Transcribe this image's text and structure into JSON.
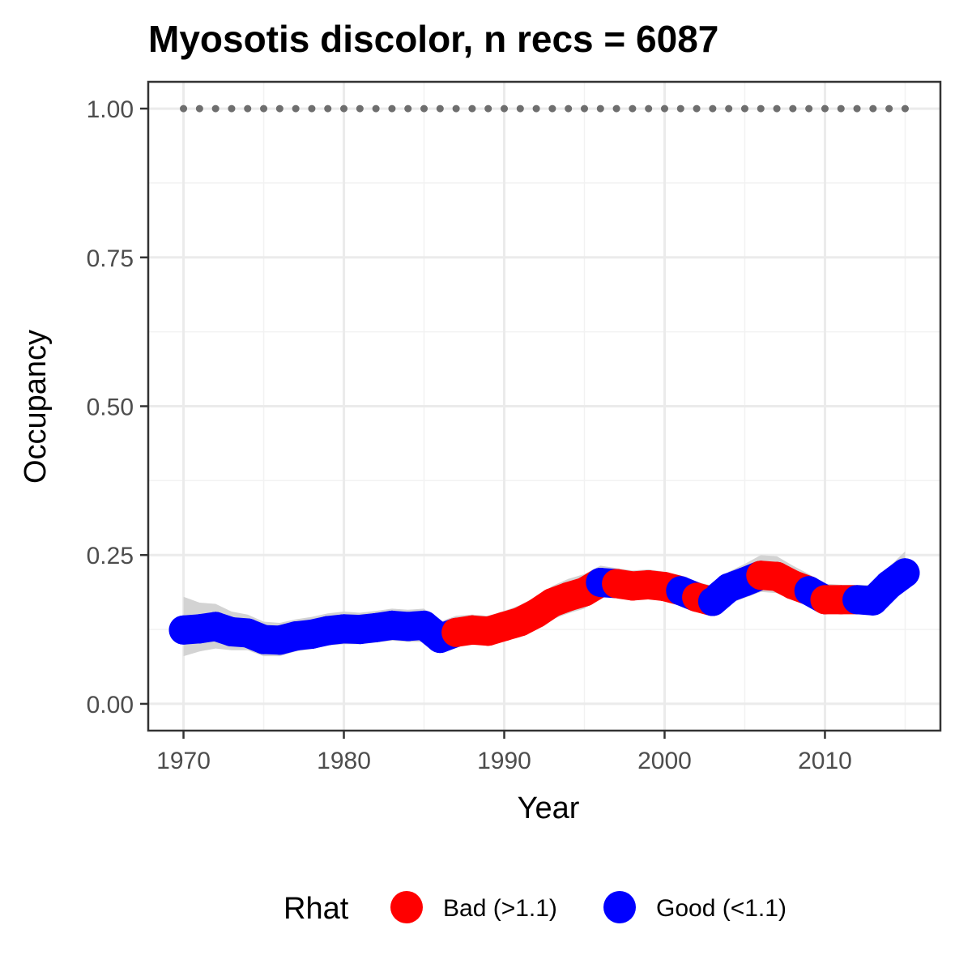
{
  "chart_data": {
    "type": "line",
    "title": "Myosotis discolor, n recs = 6087",
    "xlabel": "Year",
    "ylabel": "Occupancy",
    "xlim": [
      1967.8,
      2017.2
    ],
    "ylim": [
      -0.045,
      1.045
    ],
    "x_ticks": [
      1970,
      1980,
      1990,
      2000,
      2010
    ],
    "x_tick_labels": [
      "1970",
      "1980",
      "1990",
      "2000",
      "2010"
    ],
    "y_ticks": [
      0,
      0.25,
      0.5,
      0.75,
      1.0
    ],
    "y_tick_labels": [
      "0.00",
      "0.25",
      "0.50",
      "0.75",
      "1.00"
    ],
    "grid": true,
    "legend": {
      "title": "Rhat",
      "position": "bottom",
      "entries": [
        {
          "label": "Bad (>1.1)",
          "color": "#ff0000"
        },
        {
          "label": "Good (<1.1)",
          "color": "#0000ff"
        }
      ]
    },
    "colors": {
      "Bad": "#ff0000",
      "Good": "#0000ff",
      "band": "#d3d3d3",
      "reference": "#6e6e6e"
    },
    "reference_line": {
      "y": 1.0,
      "style": "dotted"
    },
    "x": [
      1970,
      1971,
      1972,
      1973,
      1974,
      1975,
      1976,
      1977,
      1978,
      1979,
      1980,
      1981,
      1982,
      1983,
      1984,
      1985,
      1986,
      1987,
      1988,
      1989,
      1990,
      1991,
      1992,
      1993,
      1994,
      1995,
      1996,
      1997,
      1998,
      1999,
      2000,
      2001,
      2002,
      2003,
      2004,
      2005,
      2006,
      2007,
      2008,
      2009,
      2010,
      2011,
      2012,
      2013,
      2014,
      2015
    ],
    "y": [
      0.124,
      0.126,
      0.13,
      0.121,
      0.119,
      0.108,
      0.107,
      0.114,
      0.117,
      0.123,
      0.126,
      0.125,
      0.128,
      0.132,
      0.13,
      0.132,
      0.11,
      0.12,
      0.124,
      0.122,
      0.13,
      0.138,
      0.152,
      0.17,
      0.18,
      0.188,
      0.204,
      0.202,
      0.198,
      0.2,
      0.197,
      0.19,
      0.179,
      0.172,
      0.195,
      0.205,
      0.216,
      0.214,
      0.2,
      0.19,
      0.175,
      0.175,
      0.175,
      0.173,
      0.2,
      0.22
    ],
    "lower": [
      0.08,
      0.088,
      0.093,
      0.09,
      0.09,
      0.08,
      0.08,
      0.088,
      0.092,
      0.098,
      0.1,
      0.1,
      0.103,
      0.106,
      0.104,
      0.104,
      0.088,
      0.096,
      0.1,
      0.1,
      0.106,
      0.112,
      0.125,
      0.142,
      0.152,
      0.16,
      0.178,
      0.18,
      0.176,
      0.178,
      0.174,
      0.166,
      0.155,
      0.148,
      0.168,
      0.178,
      0.188,
      0.186,
      0.175,
      0.166,
      0.152,
      0.151,
      0.151,
      0.148,
      0.172,
      0.19
    ],
    "upper": [
      0.18,
      0.17,
      0.168,
      0.155,
      0.15,
      0.138,
      0.136,
      0.142,
      0.146,
      0.152,
      0.155,
      0.153,
      0.156,
      0.16,
      0.158,
      0.16,
      0.138,
      0.148,
      0.15,
      0.148,
      0.156,
      0.166,
      0.18,
      0.198,
      0.21,
      0.218,
      0.232,
      0.228,
      0.224,
      0.226,
      0.222,
      0.216,
      0.205,
      0.198,
      0.222,
      0.235,
      0.25,
      0.248,
      0.232,
      0.218,
      0.202,
      0.2,
      0.2,
      0.2,
      0.23,
      0.256
    ],
    "rhat": [
      "Good",
      "Good",
      "Good",
      "Good",
      "Good",
      "Good",
      "Good",
      "Good",
      "Good",
      "Good",
      "Good",
      "Good",
      "Good",
      "Good",
      "Good",
      "Good",
      "Good",
      "Bad",
      "Bad",
      "Bad",
      "Bad",
      "Bad",
      "Bad",
      "Bad",
      "Bad",
      "Bad",
      "Good",
      "Bad",
      "Bad",
      "Bad",
      "Bad",
      "Good",
      "Bad",
      "Good",
      "Good",
      "Good",
      "Bad",
      "Bad",
      "Bad",
      "Good",
      "Bad",
      "Bad",
      "Good",
      "Good",
      "Good",
      "Good"
    ]
  }
}
